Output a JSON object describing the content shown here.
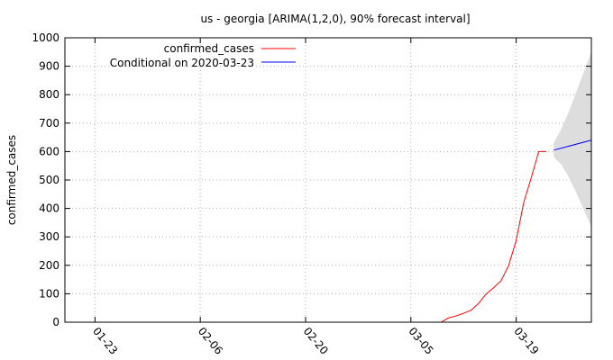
{
  "chart_data": {
    "type": "line",
    "title": "us - georgia [ARIMA(1,2,0), 90% forecast interval]",
    "xlabel": "",
    "ylabel": "confirmed_cases",
    "ylim": [
      0,
      1000
    ],
    "yticks": [
      0,
      100,
      200,
      300,
      400,
      500,
      600,
      700,
      800,
      900,
      1000
    ],
    "xticks": [
      {
        "date": "2020-01-23",
        "label": "01-23"
      },
      {
        "date": "2020-02-06",
        "label": "02-06"
      },
      {
        "date": "2020-02-20",
        "label": "02-20"
      },
      {
        "date": "2020-03-05",
        "label": "03-05"
      },
      {
        "date": "2020-03-19",
        "label": "03-19"
      }
    ],
    "xlim": [
      "2020-01-19",
      "2020-03-29"
    ],
    "grid": true,
    "legend_position": "top-left",
    "series": [
      {
        "name": "confirmed_cases",
        "color": "#ff0000",
        "points": [
          [
            "2020-03-09",
            0
          ],
          [
            "2020-03-10",
            15
          ],
          [
            "2020-03-11",
            22
          ],
          [
            "2020-03-12",
            31
          ],
          [
            "2020-03-13",
            42
          ],
          [
            "2020-03-14",
            66
          ],
          [
            "2020-03-15",
            99
          ],
          [
            "2020-03-16",
            121
          ],
          [
            "2020-03-17",
            146
          ],
          [
            "2020-03-18",
            199
          ],
          [
            "2020-03-19",
            287
          ],
          [
            "2020-03-20",
            420
          ],
          [
            "2020-03-21",
            507
          ],
          [
            "2020-03-22",
            600
          ],
          [
            "2020-03-23",
            600
          ]
        ]
      },
      {
        "name": "Conditional on 2020-03-23",
        "color": "#0000ff",
        "points": [
          [
            "2020-03-24",
            605
          ],
          [
            "2020-03-29",
            640
          ]
        ]
      }
    ],
    "forecast_interval": {
      "color": "#dddddd",
      "points": [
        [
          "2020-03-24",
          580,
          630
        ],
        [
          "2020-03-25",
          555,
          680
        ],
        [
          "2020-03-26",
          510,
          740
        ],
        [
          "2020-03-27",
          455,
          810
        ],
        [
          "2020-03-28",
          395,
          880
        ],
        [
          "2020-03-29",
          335,
          950
        ]
      ]
    }
  }
}
